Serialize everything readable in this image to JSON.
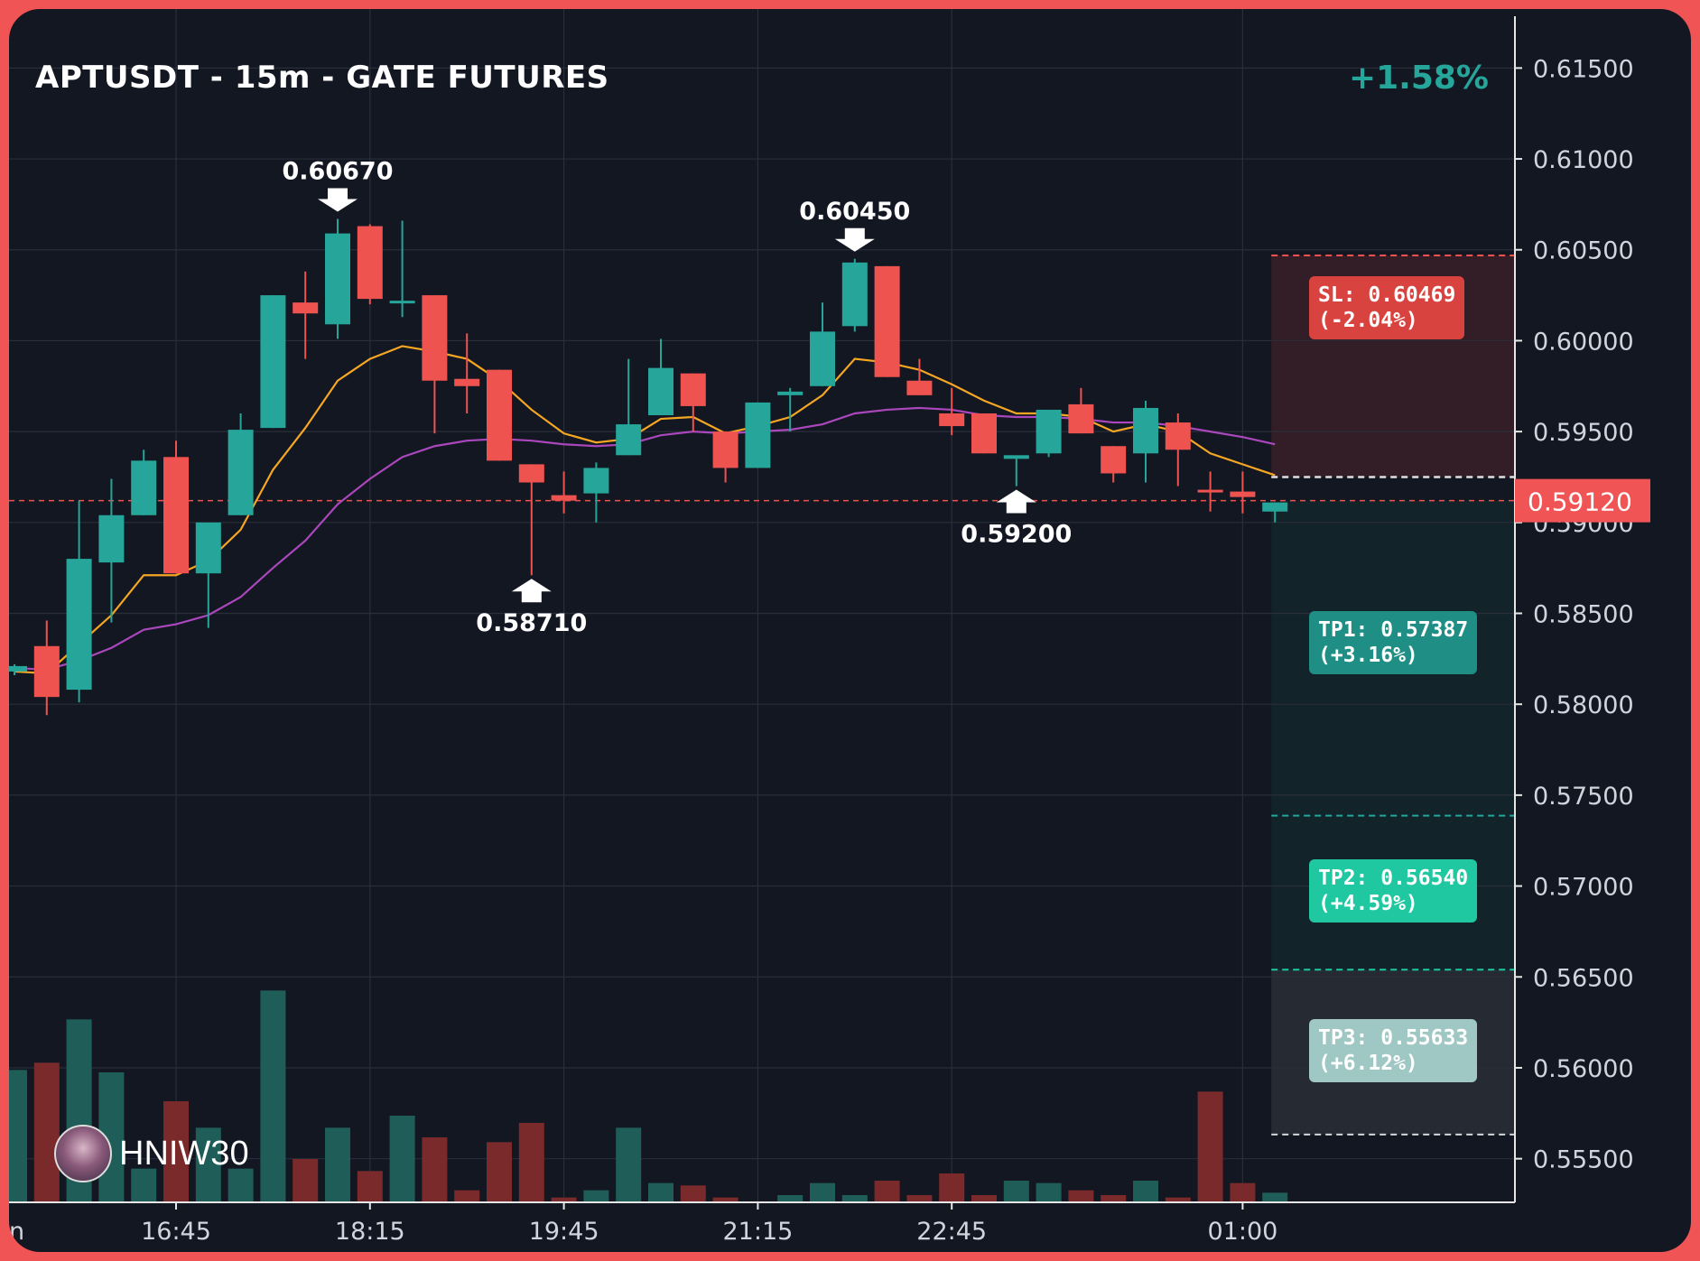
{
  "header": {
    "title": "APTUSDT - 15m - GATE FUTURES",
    "change": "+1.58%"
  },
  "watermark": {
    "text": "HNIW30",
    "icon": "avatar-icon"
  },
  "colors": {
    "up": "#26a69a",
    "down": "#ef5350",
    "ema_fast": "#f5a623",
    "ema_slow": "#ab47bc",
    "background": "#131722",
    "grid": "#2a2e39",
    "sl_zone": "#3a1f28",
    "tp_zone": "#13242b",
    "tp3_zone": "#252a33"
  },
  "chart_data": {
    "type": "candlestick",
    "symbol": "APTUSDT",
    "timeframe": "15m",
    "exchange": "GATE FUTURES",
    "x_ticks": [
      "16:45",
      "18:15",
      "19:45",
      "21:15",
      "22:45",
      "01:00"
    ],
    "x_tick_index": [
      5,
      11,
      17,
      23,
      29,
      38
    ],
    "x_edge_label": "n",
    "y_ticks": [
      "0.61500",
      "0.61000",
      "0.60500",
      "0.60000",
      "0.59500",
      "0.59000",
      "0.58500",
      "0.58000",
      "0.57500",
      "0.57000",
      "0.56500",
      "0.56000",
      "0.55500"
    ],
    "ylim": [
      0.5526,
      0.6175
    ],
    "current_price": "0.59120",
    "candles": [
      {
        "o": 0.5818,
        "h": 0.5822,
        "l": 0.5816,
        "c": 0.5821,
        "v": 55
      },
      {
        "o": 0.5832,
        "h": 0.5846,
        "l": 0.5794,
        "c": 0.5804,
        "v": 58
      },
      {
        "o": 0.5808,
        "h": 0.5912,
        "l": 0.5801,
        "c": 0.588,
        "v": 76
      },
      {
        "o": 0.5878,
        "h": 0.5924,
        "l": 0.5845,
        "c": 0.5904,
        "v": 54
      },
      {
        "o": 0.5904,
        "h": 0.594,
        "l": 0.5904,
        "c": 0.5934,
        "v": 14
      },
      {
        "o": 0.5936,
        "h": 0.5945,
        "l": 0.5872,
        "c": 0.5872,
        "v": 42
      },
      {
        "o": 0.5872,
        "h": 0.59,
        "l": 0.5842,
        "c": 0.59,
        "v": 31
      },
      {
        "o": 0.5904,
        "h": 0.596,
        "l": 0.5904,
        "c": 0.5951,
        "v": 14
      },
      {
        "o": 0.5952,
        "h": 0.6025,
        "l": 0.5952,
        "c": 0.6025,
        "v": 88
      },
      {
        "o": 0.6021,
        "h": 0.6038,
        "l": 0.599,
        "c": 0.6015,
        "v": 18
      },
      {
        "o": 0.6009,
        "h": 0.6067,
        "l": 0.6001,
        "c": 0.6059,
        "v": 31
      },
      {
        "o": 0.6063,
        "h": 0.6064,
        "l": 0.602,
        "c": 0.6023,
        "v": 13
      },
      {
        "o": 0.6022,
        "h": 0.6066,
        "l": 0.6013,
        "c": 0.6022,
        "v": 36
      },
      {
        "o": 0.6025,
        "h": 0.6025,
        "l": 0.5949,
        "c": 0.5978,
        "v": 27
      },
      {
        "o": 0.5979,
        "h": 0.6004,
        "l": 0.596,
        "c": 0.5975,
        "v": 5
      },
      {
        "o": 0.5984,
        "h": 0.5984,
        "l": 0.5934,
        "c": 0.5934,
        "v": 25
      },
      {
        "o": 0.5932,
        "h": 0.5932,
        "l": 0.5871,
        "c": 0.5922,
        "v": 33
      },
      {
        "o": 0.5915,
        "h": 0.5928,
        "l": 0.5905,
        "c": 0.5912,
        "v": 2
      },
      {
        "o": 0.5916,
        "h": 0.5933,
        "l": 0.59,
        "c": 0.593,
        "v": 5
      },
      {
        "o": 0.5937,
        "h": 0.599,
        "l": 0.5937,
        "c": 0.5954,
        "v": 31
      },
      {
        "o": 0.5959,
        "h": 0.6001,
        "l": 0.5959,
        "c": 0.5985,
        "v": 8
      },
      {
        "o": 0.5982,
        "h": 0.5982,
        "l": 0.595,
        "c": 0.5964,
        "v": 7
      },
      {
        "o": 0.595,
        "h": 0.595,
        "l": 0.5922,
        "c": 0.593,
        "v": 2
      },
      {
        "o": 0.593,
        "h": 0.5966,
        "l": 0.593,
        "c": 0.5966,
        "v": 0
      },
      {
        "o": 0.597,
        "h": 0.5974,
        "l": 0.595,
        "c": 0.5972,
        "v": 3
      },
      {
        "o": 0.5975,
        "h": 0.6021,
        "l": 0.5975,
        "c": 0.6005,
        "v": 8
      },
      {
        "o": 0.6008,
        "h": 0.6045,
        "l": 0.6005,
        "c": 0.6043,
        "v": 3
      },
      {
        "o": 0.6041,
        "h": 0.6041,
        "l": 0.598,
        "c": 0.598,
        "v": 9
      },
      {
        "o": 0.5978,
        "h": 0.599,
        "l": 0.597,
        "c": 0.597,
        "v": 3
      },
      {
        "o": 0.596,
        "h": 0.5974,
        "l": 0.5948,
        "c": 0.5953,
        "v": 12
      },
      {
        "o": 0.596,
        "h": 0.596,
        "l": 0.5938,
        "c": 0.5938,
        "v": 3
      },
      {
        "o": 0.5935,
        "h": 0.5935,
        "l": 0.592,
        "c": 0.5937,
        "v": 9
      },
      {
        "o": 0.5938,
        "h": 0.5962,
        "l": 0.5936,
        "c": 0.5962,
        "v": 8
      },
      {
        "o": 0.5965,
        "h": 0.5974,
        "l": 0.5949,
        "c": 0.5949,
        "v": 5
      },
      {
        "o": 0.5942,
        "h": 0.5942,
        "l": 0.5922,
        "c": 0.5927,
        "v": 3
      },
      {
        "o": 0.5938,
        "h": 0.5967,
        "l": 0.5922,
        "c": 0.5963,
        "v": 9
      },
      {
        "o": 0.5955,
        "h": 0.596,
        "l": 0.592,
        "c": 0.594,
        "v": 2
      },
      {
        "o": 0.5918,
        "h": 0.5928,
        "l": 0.5906,
        "c": 0.5917,
        "v": 46
      },
      {
        "o": 0.5917,
        "h": 0.5928,
        "l": 0.5905,
        "c": 0.5914,
        "v": 8
      },
      {
        "o": 0.5906,
        "h": 0.5911,
        "l": 0.59,
        "c": 0.5911,
        "v": 4
      }
    ],
    "ema_fast": [
      0.5818,
      0.5817,
      0.5833,
      0.5849,
      0.5871,
      0.5871,
      0.5879,
      0.5896,
      0.5929,
      0.5952,
      0.5978,
      0.599,
      0.5997,
      0.5994,
      0.599,
      0.5978,
      0.5962,
      0.5949,
      0.5944,
      0.5946,
      0.5957,
      0.5958,
      0.5949,
      0.5953,
      0.5958,
      0.597,
      0.599,
      0.5988,
      0.5984,
      0.5976,
      0.5967,
      0.596,
      0.596,
      0.5958,
      0.595,
      0.5954,
      0.595,
      0.5938,
      0.5932,
      0.5926
    ],
    "ema_slow": [
      0.582,
      0.5819,
      0.5824,
      0.5831,
      0.5841,
      0.5844,
      0.5849,
      0.5859,
      0.5875,
      0.589,
      0.591,
      0.5924,
      0.5936,
      0.5942,
      0.5945,
      0.5946,
      0.5945,
      0.5943,
      0.5942,
      0.5943,
      0.5948,
      0.595,
      0.5949,
      0.595,
      0.5951,
      0.5954,
      0.596,
      0.5962,
      0.5963,
      0.5962,
      0.5959,
      0.5958,
      0.5958,
      0.5957,
      0.5955,
      0.5955,
      0.5953,
      0.595,
      0.5947,
      0.5943
    ],
    "annotations": [
      {
        "index": 10,
        "price": 0.6067,
        "text": "0.60670",
        "dir": "down"
      },
      {
        "index": 26,
        "price": 0.6045,
        "text": "0.60450",
        "dir": "down"
      },
      {
        "index": 16,
        "price": 0.5871,
        "text": "0.58710",
        "dir": "up"
      },
      {
        "index": 31,
        "price": 0.592,
        "text": "0.59200",
        "dir": "up"
      }
    ],
    "levels": {
      "sl": {
        "price": 0.60469,
        "label": "SL: 0.60469",
        "pct": "(-2.04%)"
      },
      "entry": {
        "price": 0.5925
      },
      "current": {
        "price": 0.5912
      },
      "tp1": {
        "price": 0.57387,
        "label": "TP1: 0.57387",
        "pct": "(+3.16%)"
      },
      "tp2": {
        "price": 0.5654,
        "label": "TP2: 0.56540",
        "pct": "(+4.59%)"
      },
      "tp3": {
        "price": 0.55633,
        "label": "TP3: 0.55633",
        "pct": "(+6.12%)"
      }
    },
    "volume_max": 90
  }
}
